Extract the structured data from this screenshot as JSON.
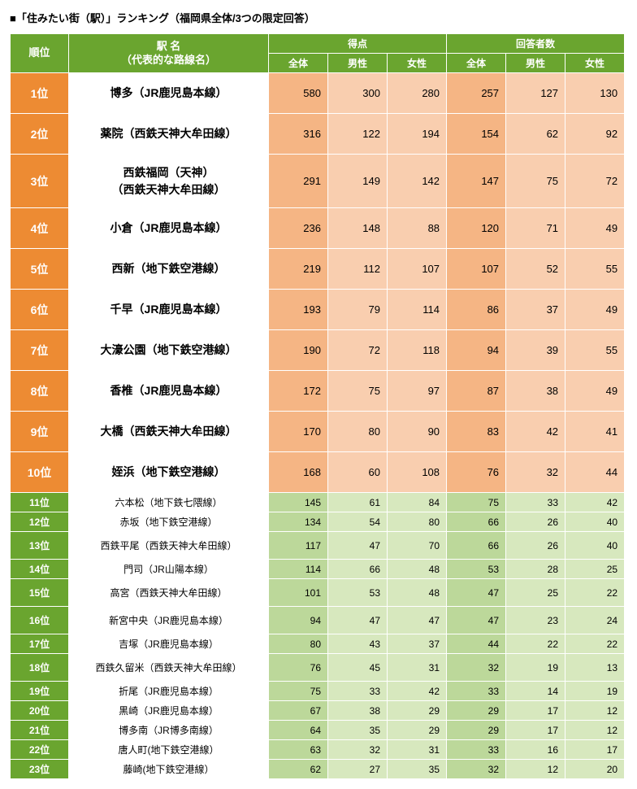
{
  "title": "■「住みたい街（駅）」ランキング（福岡県全体/3つの限定回答）",
  "headers": {
    "rank": "順位",
    "station": "駅 名",
    "station_sub": "（代表的な路線名）",
    "score": "得点",
    "respondents": "回答者数",
    "total": "全体",
    "male": "男性",
    "female": "女性"
  },
  "rows": [
    {
      "rank": "1位",
      "station": "博多（JR鹿児島本線）",
      "s_all": 580,
      "s_m": 300,
      "s_f": 280,
      "r_all": 257,
      "r_m": 127,
      "r_f": 130,
      "tier": "top"
    },
    {
      "rank": "2位",
      "station": "薬院（西鉄天神大牟田線）",
      "s_all": 316,
      "s_m": 122,
      "s_f": 194,
      "r_all": 154,
      "r_m": 62,
      "r_f": 92,
      "tier": "top"
    },
    {
      "rank": "3位",
      "station": "西鉄福岡（天神）\n（西鉄天神大牟田線）",
      "s_all": 291,
      "s_m": 149,
      "s_f": 142,
      "r_all": 147,
      "r_m": 75,
      "r_f": 72,
      "tier": "top",
      "tall": true
    },
    {
      "rank": "4位",
      "station": "小倉（JR鹿児島本線）",
      "s_all": 236,
      "s_m": 148,
      "s_f": 88,
      "r_all": 120,
      "r_m": 71,
      "r_f": 49,
      "tier": "top"
    },
    {
      "rank": "5位",
      "station": "西新（地下鉄空港線）",
      "s_all": 219,
      "s_m": 112,
      "s_f": 107,
      "r_all": 107,
      "r_m": 52,
      "r_f": 55,
      "tier": "top"
    },
    {
      "rank": "6位",
      "station": "千早（JR鹿児島本線）",
      "s_all": 193,
      "s_m": 79,
      "s_f": 114,
      "r_all": 86,
      "r_m": 37,
      "r_f": 49,
      "tier": "top"
    },
    {
      "rank": "7位",
      "station": "大濠公園（地下鉄空港線）",
      "s_all": 190,
      "s_m": 72,
      "s_f": 118,
      "r_all": 94,
      "r_m": 39,
      "r_f": 55,
      "tier": "top"
    },
    {
      "rank": "8位",
      "station": "香椎（JR鹿児島本線）",
      "s_all": 172,
      "s_m": 75,
      "s_f": 97,
      "r_all": 87,
      "r_m": 38,
      "r_f": 49,
      "tier": "top"
    },
    {
      "rank": "9位",
      "station": "大橋（西鉄天神大牟田線）",
      "s_all": 170,
      "s_m": 80,
      "s_f": 90,
      "r_all": 83,
      "r_m": 42,
      "r_f": 41,
      "tier": "top"
    },
    {
      "rank": "10位",
      "station": "姪浜（地下鉄空港線）",
      "s_all": 168,
      "s_m": 60,
      "s_f": 108,
      "r_all": 76,
      "r_m": 32,
      "r_f": 44,
      "tier": "top"
    },
    {
      "rank": "11位",
      "station": "六本松（地下鉄七隈線）",
      "s_all": 145,
      "s_m": 61,
      "s_f": 84,
      "r_all": 75,
      "r_m": 33,
      "r_f": 42,
      "tier": "low"
    },
    {
      "rank": "12位",
      "station": "赤坂（地下鉄空港線）",
      "s_all": 134,
      "s_m": 54,
      "s_f": 80,
      "r_all": 66,
      "r_m": 26,
      "r_f": 40,
      "tier": "low"
    },
    {
      "rank": "13位",
      "station": "西鉄平尾（西鉄天神大牟田線）",
      "s_all": 117,
      "s_m": 47,
      "s_f": 70,
      "r_all": 66,
      "r_m": 26,
      "r_f": 40,
      "tier": "mid"
    },
    {
      "rank": "14位",
      "station": "門司（JR山陽本線）",
      "s_all": 114,
      "s_m": 66,
      "s_f": 48,
      "r_all": 53,
      "r_m": 28,
      "r_f": 25,
      "tier": "low"
    },
    {
      "rank": "15位",
      "station": "高宮（西鉄天神大牟田線）",
      "s_all": 101,
      "s_m": 53,
      "s_f": 48,
      "r_all": 47,
      "r_m": 25,
      "r_f": 22,
      "tier": "mid"
    },
    {
      "rank": "16位",
      "station": "新宮中央（JR鹿児島本線）",
      "s_all": 94,
      "s_m": 47,
      "s_f": 47,
      "r_all": 47,
      "r_m": 23,
      "r_f": 24,
      "tier": "mid"
    },
    {
      "rank": "17位",
      "station": "吉塚（JR鹿児島本線）",
      "s_all": 80,
      "s_m": 43,
      "s_f": 37,
      "r_all": 44,
      "r_m": 22,
      "r_f": 22,
      "tier": "low"
    },
    {
      "rank": "18位",
      "station": "西鉄久留米（西鉄天神大牟田線）",
      "s_all": 76,
      "s_m": 45,
      "s_f": 31,
      "r_all": 32,
      "r_m": 19,
      "r_f": 13,
      "tier": "mid"
    },
    {
      "rank": "19位",
      "station": "折尾（JR鹿児島本線）",
      "s_all": 75,
      "s_m": 33,
      "s_f": 42,
      "r_all": 33,
      "r_m": 14,
      "r_f": 19,
      "tier": "low"
    },
    {
      "rank": "20位",
      "station": "黒崎（JR鹿児島本線）",
      "s_all": 67,
      "s_m": 38,
      "s_f": 29,
      "r_all": 29,
      "r_m": 17,
      "r_f": 12,
      "tier": "low"
    },
    {
      "rank": "21位",
      "station": "博多南（JR博多南線）",
      "s_all": 64,
      "s_m": 35,
      "s_f": 29,
      "r_all": 29,
      "r_m": 17,
      "r_f": 12,
      "tier": "low"
    },
    {
      "rank": "22位",
      "station": "唐人町(地下鉄空港線）",
      "s_all": 63,
      "s_m": 32,
      "s_f": 31,
      "r_all": 33,
      "r_m": 16,
      "r_f": 17,
      "tier": "low"
    },
    {
      "rank": "23位",
      "station": "藤崎(地下鉄空港線）",
      "s_all": 62,
      "s_m": 27,
      "s_f": 35,
      "r_all": 32,
      "r_m": 12,
      "r_f": 20,
      "tier": "low"
    }
  ]
}
